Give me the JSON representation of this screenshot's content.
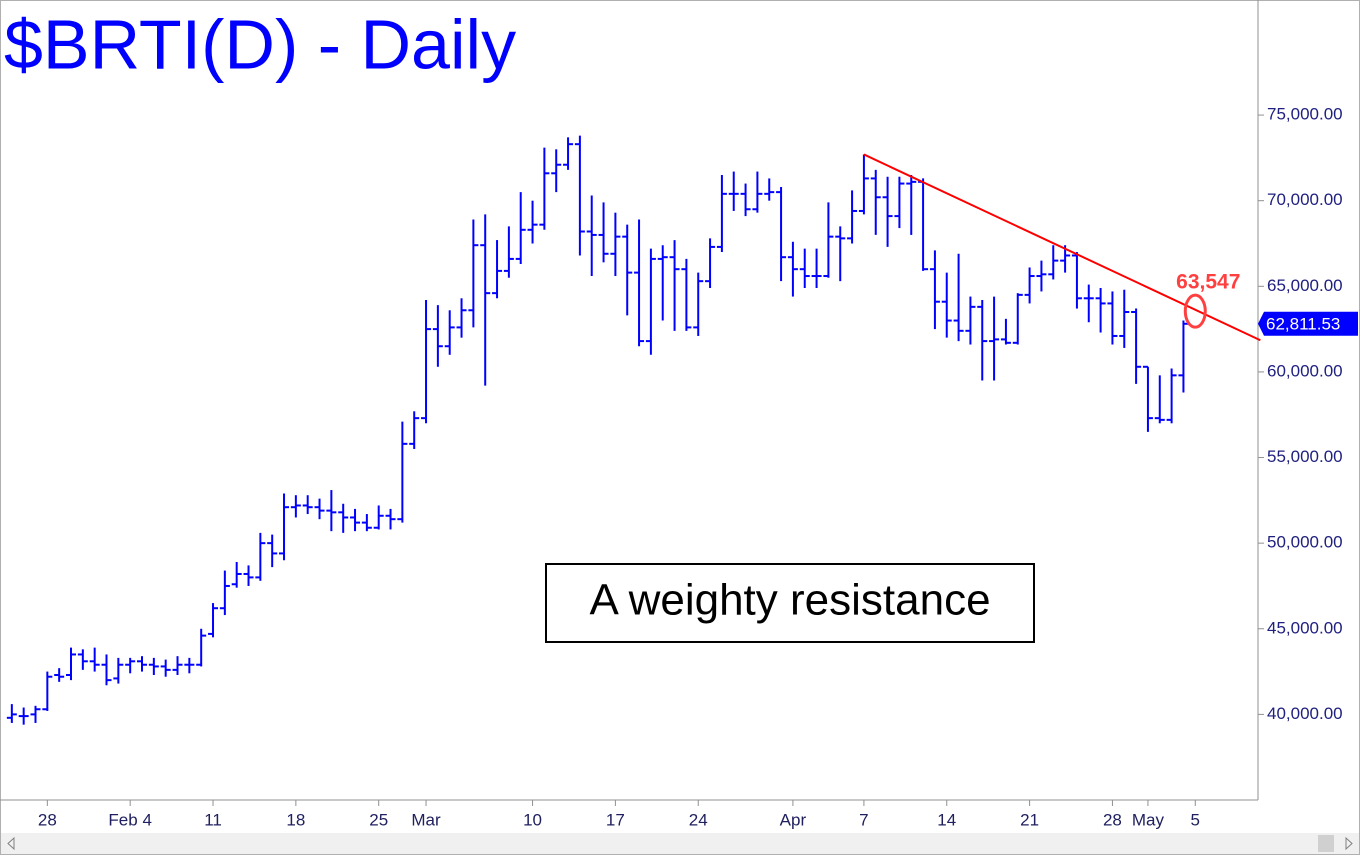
{
  "chart_data": {
    "type": "ohlc",
    "title": "$BRTI(D) - Daily",
    "color": "#0000ff",
    "ohlc": [
      [
        39800,
        40600,
        39500,
        40000
      ],
      [
        39900,
        40400,
        39400,
        39900
      ],
      [
        40000,
        40500,
        39500,
        40300
      ],
      [
        40300,
        42500,
        40200,
        42200
      ],
      [
        42300,
        42700,
        41900,
        42200
      ],
      [
        42300,
        43900,
        42000,
        43500
      ],
      [
        43500,
        43800,
        42600,
        43100
      ],
      [
        43100,
        43900,
        42500,
        42900
      ],
      [
        42900,
        43500,
        41700,
        42000
      ],
      [
        42100,
        43300,
        41800,
        42900
      ],
      [
        42900,
        43300,
        42400,
        43100
      ],
      [
        43100,
        43400,
        42500,
        42900
      ],
      [
        42900,
        43300,
        42300,
        42800
      ],
      [
        42800,
        43200,
        42200,
        42600
      ],
      [
        42600,
        43400,
        42300,
        42900
      ],
      [
        42900,
        43300,
        42400,
        42900
      ],
      [
        42900,
        45000,
        42800,
        44600
      ],
      [
        44700,
        46500,
        44500,
        46200
      ],
      [
        46200,
        48400,
        45800,
        47500
      ],
      [
        47600,
        48900,
        47400,
        48200
      ],
      [
        48200,
        48700,
        47500,
        48000
      ],
      [
        48000,
        50600,
        47800,
        50000
      ],
      [
        50000,
        50500,
        48600,
        49400
      ],
      [
        49400,
        52900,
        49000,
        52100
      ],
      [
        52100,
        52800,
        51500,
        52200
      ],
      [
        52200,
        52800,
        51700,
        52100
      ],
      [
        52100,
        52600,
        51400,
        51900
      ],
      [
        51900,
        53100,
        50700,
        51800
      ],
      [
        51800,
        52300,
        50600,
        51500
      ],
      [
        51500,
        52000,
        50700,
        51200
      ],
      [
        51200,
        51700,
        50700,
        50900
      ],
      [
        50900,
        52200,
        50800,
        51600
      ],
      [
        51600,
        52000,
        50800,
        51400
      ],
      [
        51400,
        57100,
        51200,
        55800
      ],
      [
        55800,
        57700,
        55500,
        57300
      ],
      [
        57300,
        64200,
        57000,
        62500
      ],
      [
        62500,
        63900,
        60300,
        61500
      ],
      [
        61500,
        63600,
        61000,
        62600
      ],
      [
        62600,
        64300,
        62000,
        63600
      ],
      [
        63600,
        68900,
        62600,
        67400
      ],
      [
        67400,
        69200,
        59200,
        64600
      ],
      [
        64600,
        67700,
        64300,
        65900
      ],
      [
        65900,
        68500,
        65500,
        66600
      ],
      [
        66600,
        70500,
        66300,
        68300
      ],
      [
        68300,
        70000,
        67500,
        68600
      ],
      [
        68600,
        73100,
        68300,
        71600
      ],
      [
        71600,
        73000,
        70500,
        72100
      ],
      [
        72100,
        73700,
        71800,
        73300
      ],
      [
        73300,
        73800,
        66800,
        68200
      ],
      [
        68200,
        70300,
        65600,
        68000
      ],
      [
        68000,
        69900,
        66400,
        66900
      ],
      [
        66900,
        69300,
        65600,
        67900
      ],
      [
        67900,
        68600,
        63300,
        65800
      ],
      [
        65800,
        68900,
        61500,
        61800
      ],
      [
        61800,
        67200,
        61000,
        66600
      ],
      [
        66600,
        67400,
        63000,
        66700
      ],
      [
        66700,
        67700,
        62400,
        66000
      ],
      [
        66000,
        66600,
        62400,
        62600
      ],
      [
        62600,
        65800,
        62100,
        65300
      ],
      [
        65300,
        67800,
        64900,
        67300
      ],
      [
        67300,
        71500,
        67000,
        70400
      ],
      [
        70400,
        71700,
        69400,
        70400
      ],
      [
        70400,
        71000,
        69100,
        69500
      ],
      [
        69500,
        71700,
        69300,
        70400
      ],
      [
        70400,
        71300,
        70000,
        70500
      ],
      [
        70500,
        70800,
        65300,
        66700
      ],
      [
        66700,
        67600,
        64400,
        66000
      ],
      [
        66000,
        67200,
        64900,
        65600
      ],
      [
        65600,
        67200,
        64900,
        65600
      ],
      [
        65600,
        69900,
        65500,
        67900
      ],
      [
        67900,
        68500,
        65300,
        67800
      ],
      [
        67800,
        70600,
        67500,
        69400
      ],
      [
        69400,
        72700,
        69200,
        71300
      ],
      [
        71300,
        71800,
        68000,
        70200
      ],
      [
        70200,
        71400,
        67300,
        69100
      ],
      [
        69100,
        71400,
        68400,
        71000
      ],
      [
        71000,
        71500,
        68000,
        71100
      ],
      [
        71100,
        71300,
        65900,
        66000
      ],
      [
        66000,
        67100,
        62500,
        64100
      ],
      [
        64100,
        65800,
        62000,
        63000
      ],
      [
        63000,
        66900,
        61800,
        62400
      ],
      [
        62400,
        64400,
        61600,
        63800
      ],
      [
        63800,
        64200,
        59500,
        61800
      ],
      [
        61800,
        64400,
        59500,
        61900
      ],
      [
        61900,
        63100,
        61600,
        61700
      ],
      [
        61700,
        64600,
        61600,
        64500
      ],
      [
        64500,
        66100,
        64000,
        65600
      ],
      [
        65600,
        66500,
        64700,
        65700
      ],
      [
        65700,
        67400,
        65400,
        66500
      ],
      [
        66500,
        67400,
        65800,
        66800
      ],
      [
        66800,
        67000,
        63700,
        64300
      ],
      [
        64300,
        65100,
        62900,
        64300
      ],
      [
        64300,
        64900,
        62300,
        64000
      ],
      [
        64000,
        64700,
        61600,
        62100
      ],
      [
        62100,
        64800,
        61400,
        63500
      ],
      [
        63500,
        63700,
        59300,
        60300
      ],
      [
        60300,
        60300,
        56500,
        57300
      ],
      [
        57300,
        59800,
        57000,
        57200
      ],
      [
        57200,
        60200,
        57000,
        59800
      ],
      [
        59800,
        63000,
        58800,
        62811.53
      ]
    ],
    "xlim": [
      -1,
      105.3
    ],
    "xticks": [
      {
        "value": 3,
        "label": "28"
      },
      {
        "value": 10,
        "label": "Feb 4"
      },
      {
        "value": 17,
        "label": "11"
      },
      {
        "value": 24,
        "label": "18"
      },
      {
        "value": 31,
        "label": "25"
      },
      {
        "value": 35,
        "label": "Mar"
      },
      {
        "value": 44,
        "label": "10"
      },
      {
        "value": 51,
        "label": "17"
      },
      {
        "value": 58,
        "label": "24"
      },
      {
        "value": 66,
        "label": "Apr"
      },
      {
        "value": 72,
        "label": "7"
      },
      {
        "value": 79,
        "label": "14"
      },
      {
        "value": 86,
        "label": "21"
      },
      {
        "value": 93,
        "label": "28"
      },
      {
        "value": 96,
        "label": "May"
      },
      {
        "value": 100,
        "label": "5"
      }
    ],
    "ylim": [
      35000,
      81720
    ],
    "yticks": [
      {
        "value": 40000,
        "label": "40,000.00"
      },
      {
        "value": 45000,
        "label": "45,000.00"
      },
      {
        "value": 50000,
        "label": "50,000.00"
      },
      {
        "value": 55000,
        "label": "55,000.00"
      },
      {
        "value": 60000,
        "label": "60,000.00"
      },
      {
        "value": 65000,
        "label": "65,000.00"
      },
      {
        "value": 70000,
        "label": "70,000.00"
      },
      {
        "value": 75000,
        "label": "75,000.00"
      }
    ],
    "last_price": {
      "value": 62811.53,
      "label": "62,811.53"
    },
    "trendline": {
      "x": [
        72,
        105.5
      ],
      "y": [
        72700,
        61850
      ],
      "color": "#ff0000"
    },
    "target": {
      "x": 100,
      "value": 63547,
      "label": "63,547",
      "color": "#ff4040"
    },
    "annotation": "A weighty resistance"
  }
}
